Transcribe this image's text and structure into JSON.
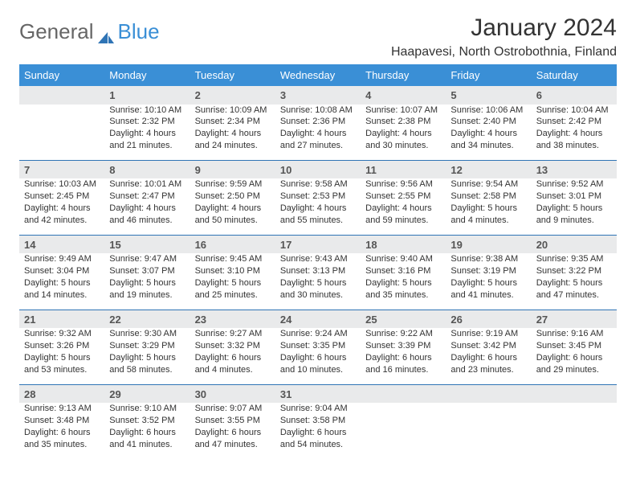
{
  "brand": {
    "part1": "General",
    "part2": "Blue"
  },
  "title": "January 2024",
  "location": "Haapavesi, North Ostrobothnia, Finland",
  "colors": {
    "header_bg": "#3a8fd6",
    "daynum_bg": "#e9eaeb",
    "rule": "#2f74b5",
    "text": "#333333",
    "brand_gray": "#666666",
    "brand_blue": "#3a8fd6"
  },
  "day_headers": [
    "Sunday",
    "Monday",
    "Tuesday",
    "Wednesday",
    "Thursday",
    "Friday",
    "Saturday"
  ],
  "weeks": [
    {
      "nums": [
        "",
        "1",
        "2",
        "3",
        "4",
        "5",
        "6"
      ],
      "cells": [
        {},
        {
          "sunrise": "Sunrise: 10:10 AM",
          "sunset": "Sunset: 2:32 PM",
          "daylight": "Daylight: 4 hours and 21 minutes."
        },
        {
          "sunrise": "Sunrise: 10:09 AM",
          "sunset": "Sunset: 2:34 PM",
          "daylight": "Daylight: 4 hours and 24 minutes."
        },
        {
          "sunrise": "Sunrise: 10:08 AM",
          "sunset": "Sunset: 2:36 PM",
          "daylight": "Daylight: 4 hours and 27 minutes."
        },
        {
          "sunrise": "Sunrise: 10:07 AM",
          "sunset": "Sunset: 2:38 PM",
          "daylight": "Daylight: 4 hours and 30 minutes."
        },
        {
          "sunrise": "Sunrise: 10:06 AM",
          "sunset": "Sunset: 2:40 PM",
          "daylight": "Daylight: 4 hours and 34 minutes."
        },
        {
          "sunrise": "Sunrise: 10:04 AM",
          "sunset": "Sunset: 2:42 PM",
          "daylight": "Daylight: 4 hours and 38 minutes."
        }
      ]
    },
    {
      "nums": [
        "7",
        "8",
        "9",
        "10",
        "11",
        "12",
        "13"
      ],
      "cells": [
        {
          "sunrise": "Sunrise: 10:03 AM",
          "sunset": "Sunset: 2:45 PM",
          "daylight": "Daylight: 4 hours and 42 minutes."
        },
        {
          "sunrise": "Sunrise: 10:01 AM",
          "sunset": "Sunset: 2:47 PM",
          "daylight": "Daylight: 4 hours and 46 minutes."
        },
        {
          "sunrise": "Sunrise: 9:59 AM",
          "sunset": "Sunset: 2:50 PM",
          "daylight": "Daylight: 4 hours and 50 minutes."
        },
        {
          "sunrise": "Sunrise: 9:58 AM",
          "sunset": "Sunset: 2:53 PM",
          "daylight": "Daylight: 4 hours and 55 minutes."
        },
        {
          "sunrise": "Sunrise: 9:56 AM",
          "sunset": "Sunset: 2:55 PM",
          "daylight": "Daylight: 4 hours and 59 minutes."
        },
        {
          "sunrise": "Sunrise: 9:54 AM",
          "sunset": "Sunset: 2:58 PM",
          "daylight": "Daylight: 5 hours and 4 minutes."
        },
        {
          "sunrise": "Sunrise: 9:52 AM",
          "sunset": "Sunset: 3:01 PM",
          "daylight": "Daylight: 5 hours and 9 minutes."
        }
      ]
    },
    {
      "nums": [
        "14",
        "15",
        "16",
        "17",
        "18",
        "19",
        "20"
      ],
      "cells": [
        {
          "sunrise": "Sunrise: 9:49 AM",
          "sunset": "Sunset: 3:04 PM",
          "daylight": "Daylight: 5 hours and 14 minutes."
        },
        {
          "sunrise": "Sunrise: 9:47 AM",
          "sunset": "Sunset: 3:07 PM",
          "daylight": "Daylight: 5 hours and 19 minutes."
        },
        {
          "sunrise": "Sunrise: 9:45 AM",
          "sunset": "Sunset: 3:10 PM",
          "daylight": "Daylight: 5 hours and 25 minutes."
        },
        {
          "sunrise": "Sunrise: 9:43 AM",
          "sunset": "Sunset: 3:13 PM",
          "daylight": "Daylight: 5 hours and 30 minutes."
        },
        {
          "sunrise": "Sunrise: 9:40 AM",
          "sunset": "Sunset: 3:16 PM",
          "daylight": "Daylight: 5 hours and 35 minutes."
        },
        {
          "sunrise": "Sunrise: 9:38 AM",
          "sunset": "Sunset: 3:19 PM",
          "daylight": "Daylight: 5 hours and 41 minutes."
        },
        {
          "sunrise": "Sunrise: 9:35 AM",
          "sunset": "Sunset: 3:22 PM",
          "daylight": "Daylight: 5 hours and 47 minutes."
        }
      ]
    },
    {
      "nums": [
        "21",
        "22",
        "23",
        "24",
        "25",
        "26",
        "27"
      ],
      "cells": [
        {
          "sunrise": "Sunrise: 9:32 AM",
          "sunset": "Sunset: 3:26 PM",
          "daylight": "Daylight: 5 hours and 53 minutes."
        },
        {
          "sunrise": "Sunrise: 9:30 AM",
          "sunset": "Sunset: 3:29 PM",
          "daylight": "Daylight: 5 hours and 58 minutes."
        },
        {
          "sunrise": "Sunrise: 9:27 AM",
          "sunset": "Sunset: 3:32 PM",
          "daylight": "Daylight: 6 hours and 4 minutes."
        },
        {
          "sunrise": "Sunrise: 9:24 AM",
          "sunset": "Sunset: 3:35 PM",
          "daylight": "Daylight: 6 hours and 10 minutes."
        },
        {
          "sunrise": "Sunrise: 9:22 AM",
          "sunset": "Sunset: 3:39 PM",
          "daylight": "Daylight: 6 hours and 16 minutes."
        },
        {
          "sunrise": "Sunrise: 9:19 AM",
          "sunset": "Sunset: 3:42 PM",
          "daylight": "Daylight: 6 hours and 23 minutes."
        },
        {
          "sunrise": "Sunrise: 9:16 AM",
          "sunset": "Sunset: 3:45 PM",
          "daylight": "Daylight: 6 hours and 29 minutes."
        }
      ]
    },
    {
      "nums": [
        "28",
        "29",
        "30",
        "31",
        "",
        "",
        ""
      ],
      "cells": [
        {
          "sunrise": "Sunrise: 9:13 AM",
          "sunset": "Sunset: 3:48 PM",
          "daylight": "Daylight: 6 hours and 35 minutes."
        },
        {
          "sunrise": "Sunrise: 9:10 AM",
          "sunset": "Sunset: 3:52 PM",
          "daylight": "Daylight: 6 hours and 41 minutes."
        },
        {
          "sunrise": "Sunrise: 9:07 AM",
          "sunset": "Sunset: 3:55 PM",
          "daylight": "Daylight: 6 hours and 47 minutes."
        },
        {
          "sunrise": "Sunrise: 9:04 AM",
          "sunset": "Sunset: 3:58 PM",
          "daylight": "Daylight: 6 hours and 54 minutes."
        },
        {},
        {},
        {}
      ]
    }
  ]
}
